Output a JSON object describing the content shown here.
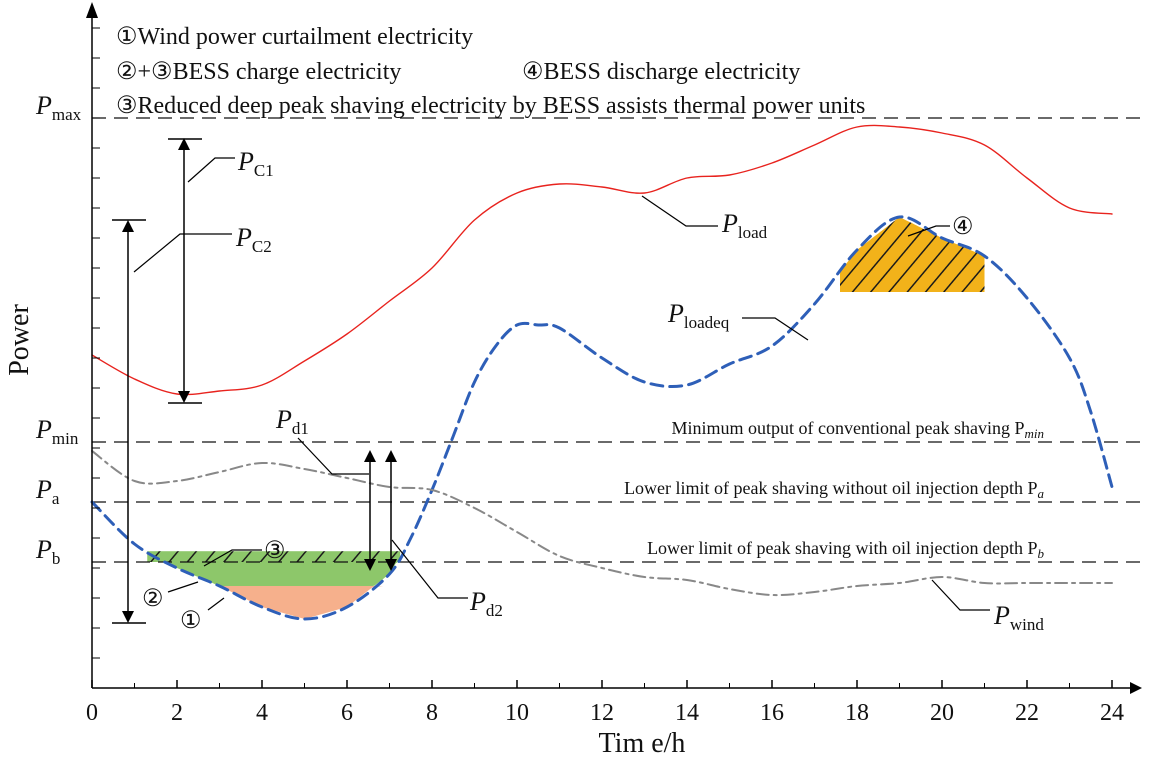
{
  "chart_data": {
    "type": "line",
    "xlabel": "Tim e/h",
    "ylabel": "Power",
    "xlim": [
      0,
      24
    ],
    "x_ticks": [
      "0",
      "2",
      "4",
      "6",
      "8",
      "10",
      "12",
      "14",
      "16",
      "18",
      "20",
      "22",
      "24"
    ],
    "legend": [
      "①Wind power curtailment electricity",
      "②+③BESS charge electricity",
      "④BESS discharge electricity",
      "③Reduced deep peak shaving electricity by BESS assists thermal power units"
    ],
    "reference_levels": [
      {
        "key": "pmax",
        "name": "P",
        "sub": "max",
        "value": 9.5,
        "label": ""
      },
      {
        "key": "pmin",
        "name": "P",
        "sub": "min",
        "value": 4.1,
        "label": "Minimum output of conventional peak shaving P",
        "label_sub": "min"
      },
      {
        "key": "pa",
        "name": "P",
        "sub": "a",
        "value": 3.1,
        "label": "Lower limit of peak shaving without oil injection depth P",
        "label_sub": "a"
      },
      {
        "key": "pb",
        "name": "P",
        "sub": "b",
        "value": 2.1,
        "label": "Lower limit of peak shaving with oil injection depth P",
        "label_sub": "b"
      }
    ],
    "series": [
      {
        "name": "P",
        "sub": "load",
        "color": "#e8231e",
        "style": "solid",
        "x": [
          0,
          1,
          2,
          3,
          4,
          5,
          6,
          7,
          8,
          9,
          10,
          11,
          12,
          13,
          14,
          15,
          16,
          17,
          18,
          19,
          20,
          21,
          22,
          23,
          24
        ],
        "y": [
          5.55,
          5.15,
          4.9,
          4.95,
          5.05,
          5.45,
          5.9,
          6.45,
          7.0,
          7.8,
          8.25,
          8.4,
          8.35,
          8.25,
          8.5,
          8.55,
          8.75,
          9.05,
          9.35,
          9.35,
          9.25,
          9.05,
          8.5,
          8.0,
          7.9
        ]
      },
      {
        "name": "P",
        "sub": "loadeq",
        "color": "#2e5fb8",
        "style": "dashed",
        "x": [
          0,
          1,
          2,
          3,
          4,
          5,
          6,
          7,
          7.5,
          8,
          8.5,
          9,
          9.5,
          10,
          10.5,
          11,
          12,
          13,
          14,
          15,
          16,
          17,
          18,
          19,
          20,
          21,
          22,
          23,
          23.5,
          24
        ],
        "y": [
          3.1,
          2.4,
          2.0,
          1.7,
          1.35,
          1.15,
          1.35,
          1.9,
          2.5,
          3.3,
          4.2,
          5.1,
          5.7,
          6.05,
          6.05,
          6.0,
          5.5,
          5.1,
          5.05,
          5.4,
          5.7,
          6.4,
          7.3,
          7.85,
          7.5,
          7.2,
          6.5,
          5.5,
          4.6,
          3.35
        ]
      },
      {
        "name": "P",
        "sub": "wind",
        "color": "#888888",
        "style": "dashdot",
        "x": [
          0,
          1,
          2,
          3,
          4,
          5,
          6,
          7,
          8,
          9,
          10,
          11,
          12,
          13,
          14,
          15,
          16,
          17,
          18,
          19,
          20,
          21,
          22,
          23,
          24
        ],
        "y": [
          3.95,
          3.45,
          3.45,
          3.6,
          3.75,
          3.65,
          3.5,
          3.35,
          3.3,
          3.0,
          2.6,
          2.2,
          2.0,
          1.85,
          1.8,
          1.65,
          1.55,
          1.6,
          1.7,
          1.75,
          1.85,
          1.75,
          1.75,
          1.75,
          1.75
        ]
      }
    ],
    "regions": [
      {
        "id": "1",
        "label": "①",
        "color": "#f6b08c",
        "desc": "wind curtailment"
      },
      {
        "id": "2",
        "label": "②",
        "color": "#8dc76a",
        "desc": "BESS charge"
      },
      {
        "id": "3",
        "label": "③",
        "color": "#8dc76a",
        "hatched": true,
        "desc": "reduced deep peak shaving"
      },
      {
        "id": "4",
        "label": "④",
        "color": "#f2b21a",
        "hatched": true,
        "desc": "BESS discharge"
      }
    ],
    "annotations": [
      {
        "key": "pc1",
        "name": "P",
        "sub": "C1"
      },
      {
        "key": "pc2",
        "name": "P",
        "sub": "C2"
      },
      {
        "key": "pd1",
        "name": "P",
        "sub": "d1"
      },
      {
        "key": "pd2",
        "name": "P",
        "sub": "d2"
      }
    ]
  }
}
